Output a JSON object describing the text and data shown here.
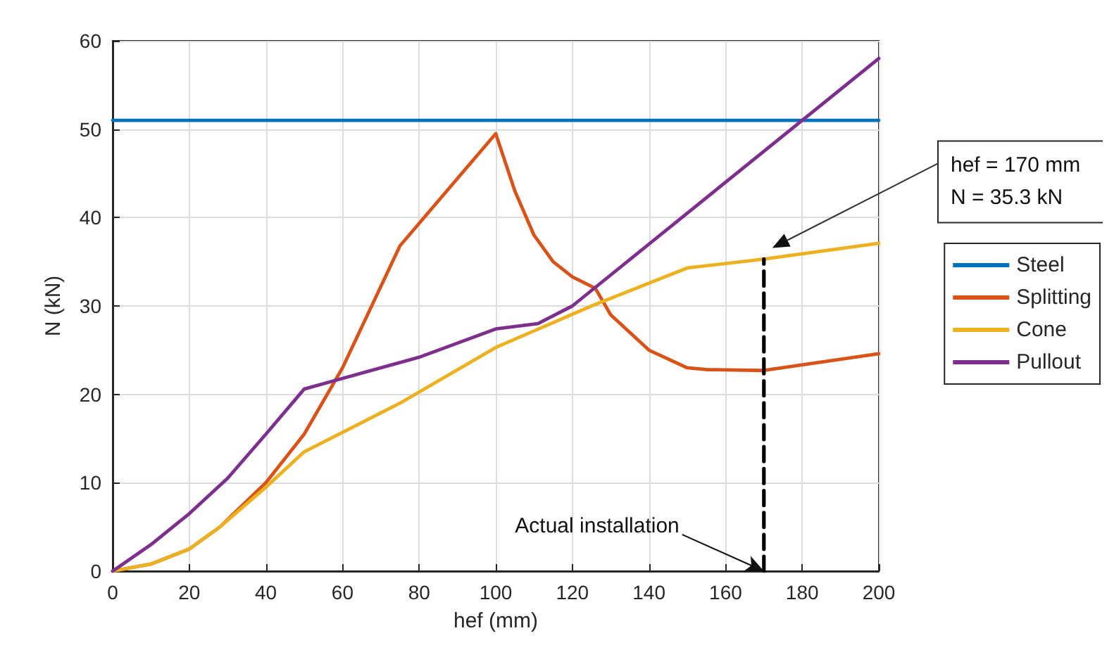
{
  "chart_data": {
    "type": "line",
    "xlabel": "hef (mm)",
    "ylabel": "N (kN)",
    "xlim": [
      0,
      200
    ],
    "xticks": [
      0,
      20,
      40,
      60,
      80,
      100,
      120,
      140,
      160,
      180,
      200
    ],
    "ylim": [
      0,
      60
    ],
    "yticks": [
      0,
      10,
      20,
      30,
      40,
      50,
      60
    ],
    "grid": true,
    "legend": "right",
    "line_style": "solid",
    "marker": "none",
    "series": [
      {
        "name": "Steel",
        "color": "#0072bd",
        "x": [
          0,
          200
        ],
        "values": [
          51,
          51
        ]
      },
      {
        "name": "Splitting",
        "color": "#d95319",
        "x": [
          0,
          10,
          20,
          28,
          40,
          50,
          60,
          75,
          100,
          105,
          110,
          115,
          120,
          126,
          130,
          140,
          150,
          155,
          170,
          200
        ],
        "values": [
          0,
          0.8,
          2.5,
          5,
          10,
          15.5,
          23,
          36.8,
          49.5,
          43,
          38,
          35,
          33.3,
          32,
          29,
          25,
          23,
          22.8,
          22.7,
          24.6
        ]
      },
      {
        "name": "Cone",
        "color": "#edb120",
        "x": [
          0,
          10,
          20,
          28,
          40,
          50,
          75,
          100,
          125,
          150,
          170,
          200
        ],
        "values": [
          0,
          0.8,
          2.5,
          5,
          9.5,
          13.5,
          19,
          25.3,
          30,
          34.3,
          35.3,
          37.1
        ]
      },
      {
        "name": "Pullout",
        "color": "#7e2f8e",
        "x": [
          0,
          10,
          20,
          30,
          40,
          50,
          60,
          80,
          100,
          111,
          120,
          200
        ],
        "values": [
          0,
          3,
          6.5,
          10.5,
          15.5,
          20.6,
          21.8,
          24.2,
          27.4,
          28,
          30,
          58
        ]
      },
      {
        "color": "#000000",
        "line_style": "dashed",
        "x": [
          170,
          170
        ],
        "values": [
          0,
          35.3
        ]
      }
    ],
    "annotations": [
      {
        "text": "Actual installation",
        "x": 170,
        "y": 0
      },
      "hef = 170 mm\nN = 35.3 kN"
    ]
  }
}
